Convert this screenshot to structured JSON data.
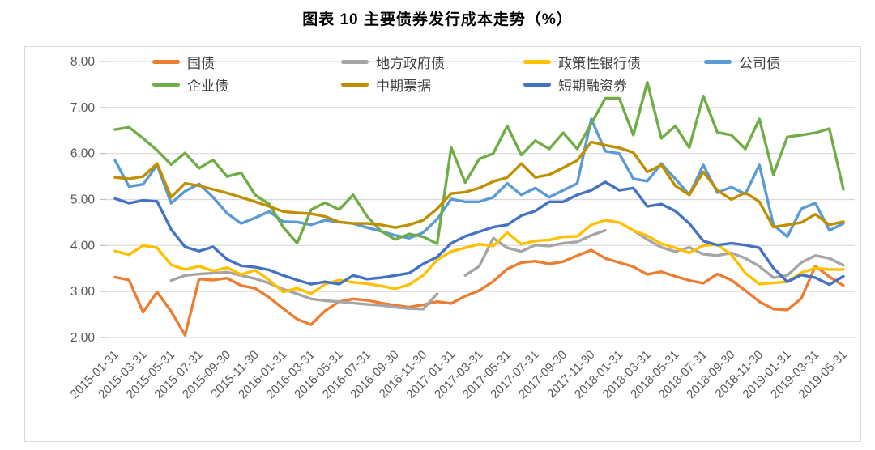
{
  "page": {
    "title": "图表 10 主要债券发行成本走势（%）"
  },
  "chart_data": {
    "type": "line",
    "title": "图表 10 主要债券发行成本走势（%）",
    "ylabel": "",
    "xlabel": "",
    "ylim": [
      2.0,
      8.0
    ],
    "ytick_step": 1.0,
    "ytick_labels": [
      "2.00",
      "3.00",
      "4.00",
      "5.00",
      "6.00",
      "7.00",
      "8.00"
    ],
    "grid": true,
    "legend_position": "top",
    "axis_label_color": "#595959",
    "grid_color": "#D9D9D9",
    "x_tick_every": 2,
    "x": [
      "2015-01-31",
      "2015-02-28",
      "2015-03-31",
      "2015-04-30",
      "2015-05-31",
      "2015-06-30",
      "2015-07-31",
      "2015-08-31",
      "2015-09-30",
      "2015-10-31",
      "2015-11-30",
      "2015-12-31",
      "2016-01-31",
      "2016-02-29",
      "2016-03-31",
      "2016-04-30",
      "2016-05-31",
      "2016-06-30",
      "2016-07-31",
      "2016-08-31",
      "2016-09-30",
      "2016-10-31",
      "2016-11-30",
      "2016-12-31",
      "2017-01-31",
      "2017-02-28",
      "2017-03-31",
      "2017-04-30",
      "2017-05-31",
      "2017-06-30",
      "2017-07-31",
      "2017-08-31",
      "2017-09-30",
      "2017-10-31",
      "2017-11-30",
      "2017-12-31",
      "2018-01-31",
      "2018-02-28",
      "2018-03-31",
      "2018-04-30",
      "2018-05-31",
      "2018-06-30",
      "2018-07-31",
      "2018-08-31",
      "2018-09-30",
      "2018-10-31",
      "2018-11-30",
      "2018-12-31",
      "2019-01-31",
      "2019-02-28",
      "2019-03-31",
      "2019-04-30",
      "2019-05-31"
    ],
    "series": [
      {
        "name": "国债",
        "color": "#ED7D31",
        "values": [
          3.31,
          3.25,
          2.55,
          2.99,
          2.57,
          2.05,
          3.27,
          3.25,
          3.29,
          3.13,
          3.07,
          2.87,
          2.63,
          2.4,
          2.28,
          2.58,
          2.78,
          2.84,
          2.81,
          2.75,
          2.7,
          2.66,
          2.71,
          2.78,
          2.74,
          2.9,
          3.02,
          3.22,
          3.49,
          3.63,
          3.66,
          3.6,
          3.65,
          3.78,
          3.9,
          3.72,
          3.63,
          3.54,
          3.37,
          3.43,
          3.33,
          3.24,
          3.18,
          3.38,
          3.25,
          3.02,
          2.78,
          2.62,
          2.6,
          2.85,
          3.55,
          3.32,
          3.13
        ]
      },
      {
        "name": "地方政府债",
        "color": "#A5A5A5",
        "values": [
          null,
          null,
          null,
          null,
          3.24,
          3.35,
          3.38,
          3.4,
          3.42,
          3.35,
          3.28,
          3.18,
          3.05,
          2.95,
          2.84,
          2.8,
          2.78,
          2.75,
          2.72,
          2.7,
          2.66,
          2.63,
          2.62,
          2.95,
          null,
          3.35,
          3.55,
          4.16,
          3.95,
          3.87,
          4.01,
          3.99,
          4.05,
          4.08,
          4.22,
          4.33,
          null,
          4.33,
          4.13,
          3.96,
          3.87,
          3.96,
          3.81,
          3.78,
          3.84,
          3.72,
          3.55,
          3.3,
          3.35,
          3.63,
          3.78,
          3.72,
          3.57
        ]
      },
      {
        "name": "政策性银行债",
        "color": "#FFC000",
        "values": [
          3.88,
          3.8,
          4.0,
          3.95,
          3.58,
          3.48,
          3.55,
          3.45,
          3.52,
          3.37,
          3.46,
          3.25,
          2.99,
          3.07,
          2.95,
          3.16,
          3.25,
          3.2,
          3.17,
          3.12,
          3.06,
          3.15,
          3.35,
          3.69,
          3.87,
          3.95,
          4.03,
          3.99,
          4.28,
          4.03,
          4.1,
          4.12,
          4.19,
          4.2,
          4.45,
          4.55,
          4.5,
          4.33,
          4.21,
          4.04,
          3.95,
          3.84,
          4.0,
          4.02,
          3.8,
          3.4,
          3.16,
          3.19,
          3.21,
          3.41,
          3.51,
          3.48,
          3.48
        ]
      },
      {
        "name": "公司债",
        "color": "#5B9BD5",
        "values": [
          5.85,
          5.28,
          5.33,
          5.75,
          4.92,
          5.18,
          5.34,
          5.05,
          4.7,
          4.48,
          4.6,
          4.74,
          4.52,
          4.51,
          4.45,
          4.55,
          4.51,
          4.48,
          4.39,
          4.31,
          4.22,
          4.16,
          4.28,
          4.57,
          5.01,
          4.95,
          4.95,
          5.05,
          5.35,
          5.1,
          5.25,
          5.05,
          5.2,
          5.35,
          6.75,
          6.05,
          6.0,
          5.45,
          5.4,
          5.78,
          5.45,
          5.1,
          5.75,
          5.15,
          5.27,
          5.12,
          5.75,
          4.45,
          4.19,
          4.8,
          4.92,
          4.33,
          4.48
        ]
      },
      {
        "name": "企业债",
        "color": "#70AD47",
        "values": [
          6.52,
          6.57,
          6.33,
          6.07,
          5.76,
          6.01,
          5.68,
          5.86,
          5.5,
          5.58,
          5.1,
          4.9,
          4.4,
          4.05,
          4.78,
          4.93,
          4.78,
          5.1,
          4.63,
          4.31,
          4.13,
          4.25,
          4.19,
          4.04,
          6.13,
          5.37,
          5.88,
          6.0,
          6.6,
          5.97,
          6.28,
          6.1,
          6.45,
          6.1,
          6.65,
          7.2,
          7.2,
          6.4,
          7.55,
          6.33,
          6.6,
          6.13,
          7.25,
          6.46,
          6.4,
          6.1,
          6.75,
          5.54,
          6.36,
          6.4,
          6.45,
          6.54,
          5.22
        ]
      },
      {
        "name": "中期票据",
        "color": "#BF8F00",
        "values": [
          5.48,
          5.45,
          5.5,
          5.78,
          5.05,
          5.35,
          5.3,
          5.22,
          5.14,
          5.05,
          4.95,
          4.85,
          4.74,
          4.71,
          4.69,
          4.63,
          4.51,
          4.48,
          4.48,
          4.45,
          4.39,
          4.45,
          4.55,
          4.8,
          5.13,
          5.16,
          5.25,
          5.39,
          5.48,
          5.78,
          5.48,
          5.54,
          5.69,
          5.85,
          6.25,
          6.18,
          6.12,
          6.02,
          5.6,
          5.75,
          5.3,
          5.1,
          5.6,
          5.2,
          5.0,
          5.15,
          4.95,
          4.4,
          4.45,
          4.5,
          4.68,
          4.45,
          4.52
        ]
      },
      {
        "name": "短期融资券",
        "color": "#4472C4",
        "values": [
          5.02,
          4.92,
          4.98,
          4.96,
          4.35,
          3.97,
          3.88,
          3.97,
          3.7,
          3.56,
          3.53,
          3.47,
          3.35,
          3.25,
          3.16,
          3.21,
          3.16,
          3.35,
          3.27,
          3.3,
          3.35,
          3.4,
          3.6,
          3.75,
          4.05,
          4.2,
          4.3,
          4.4,
          4.45,
          4.65,
          4.75,
          4.95,
          4.95,
          5.1,
          5.2,
          5.38,
          5.2,
          5.25,
          4.85,
          4.9,
          4.75,
          4.48,
          4.1,
          4.01,
          4.05,
          4.01,
          3.95,
          3.51,
          3.21,
          3.36,
          3.3,
          3.15,
          3.33
        ]
      }
    ]
  }
}
